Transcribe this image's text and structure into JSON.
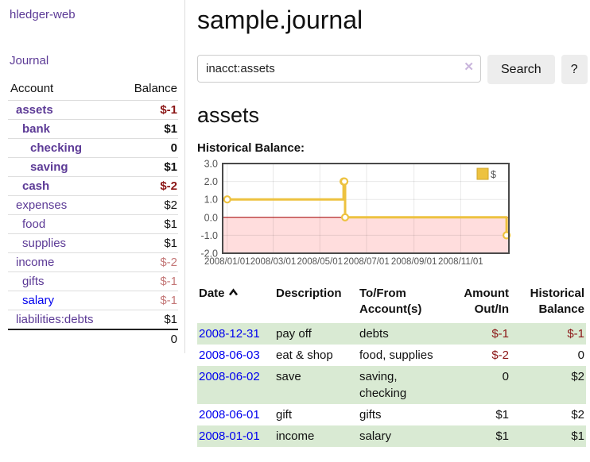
{
  "sidebar": {
    "brand": "hledger-web",
    "nav": {
      "journal": "Journal"
    },
    "accounts_table": {
      "headers": {
        "account": "Account",
        "balance": "Balance"
      },
      "rows": [
        {
          "name": "assets",
          "indent": 1,
          "bold": true,
          "balance": "$-1",
          "balance_style": "neg-dark"
        },
        {
          "name": "bank",
          "indent": 2,
          "bold": true,
          "balance": "$1",
          "balance_style": "pos"
        },
        {
          "name": "checking",
          "indent": 3,
          "bold": true,
          "balance": "0",
          "balance_style": "pos"
        },
        {
          "name": "saving",
          "indent": 3,
          "bold": true,
          "balance": "$1",
          "balance_style": "pos"
        },
        {
          "name": "cash",
          "indent": 2,
          "bold": true,
          "balance": "$-2",
          "balance_style": "neg-dark"
        },
        {
          "name": "expenses",
          "indent": 1,
          "bold": false,
          "balance": "$2",
          "balance_style": "pos"
        },
        {
          "name": "food",
          "indent": 2,
          "bold": false,
          "balance": "$1",
          "balance_style": "pos"
        },
        {
          "name": "supplies",
          "indent": 2,
          "bold": false,
          "balance": "$1",
          "balance_style": "pos"
        },
        {
          "name": "income",
          "indent": 1,
          "bold": false,
          "balance": "$-2",
          "balance_style": "neg-light"
        },
        {
          "name": "gifts",
          "indent": 2,
          "bold": false,
          "balance": "$-1",
          "balance_style": "neg-light"
        },
        {
          "name": "salary",
          "indent": 2,
          "bold": false,
          "link_color": "blue",
          "balance": "$-1",
          "balance_style": "neg-light"
        },
        {
          "name": "liabilities:debts",
          "indent": 1,
          "bold": false,
          "balance": "$1",
          "balance_style": "pos"
        }
      ],
      "total": "0"
    }
  },
  "header": {
    "title": "sample.journal"
  },
  "search": {
    "value": "inacct:assets",
    "clear_icon": "✕",
    "button_label": "Search",
    "help_label": "?"
  },
  "main": {
    "account_title": "assets",
    "chart_label": "Historical Balance:"
  },
  "chart_data": {
    "type": "line",
    "step": true,
    "title": "Historical Balance",
    "series": [
      {
        "name": "$",
        "color": "#edc240",
        "points": [
          [
            "2008-01-01",
            1
          ],
          [
            "2008-06-01",
            2
          ],
          [
            "2008-06-02",
            2
          ],
          [
            "2008-06-03",
            0
          ],
          [
            "2008-12-31",
            -1
          ]
        ]
      }
    ],
    "xticks": [
      "2008/01/01",
      "2008/03/01",
      "2008/05/01",
      "2008/07/01",
      "2008/09/01",
      "2008/11/01"
    ],
    "yticks": [
      "3.0",
      "2.0",
      "1.0",
      "0.0",
      "-1.0",
      "-2.0"
    ],
    "ylim": [
      -2,
      3
    ],
    "grid": true,
    "legend_position": "top-right",
    "negative_region_fill": "#ffdddd",
    "zero_line_color": "#a40000",
    "axis_label_color": "#545454",
    "border_color": "#4a4a4a"
  },
  "register": {
    "headers": {
      "date": "Date",
      "sort_icon": "chevron-up",
      "description": "Description",
      "tofrom": [
        "To/From",
        "Account(s)"
      ],
      "amount": [
        "Amount",
        "Out/In"
      ],
      "balance": [
        "Historical",
        "Balance"
      ]
    },
    "rows": [
      {
        "date": "2008-12-31",
        "description": "pay off",
        "accounts": "debts",
        "amount": "$-1",
        "balance": "$-1",
        "shaded": true
      },
      {
        "date": "2008-06-03",
        "description": "eat & shop",
        "accounts": "food, supplies",
        "amount": "$-2",
        "balance": "0",
        "shaded": false
      },
      {
        "date": "2008-06-02",
        "description": "save",
        "accounts": "saving, checking",
        "amount": "0",
        "balance": "$2",
        "shaded": true
      },
      {
        "date": "2008-06-01",
        "description": "gift",
        "accounts": "gifts",
        "amount": "$1",
        "balance": "$2",
        "shaded": false
      },
      {
        "date": "2008-01-01",
        "description": "income",
        "accounts": "salary",
        "amount": "$1",
        "balance": "$1",
        "shaded": true
      }
    ]
  }
}
